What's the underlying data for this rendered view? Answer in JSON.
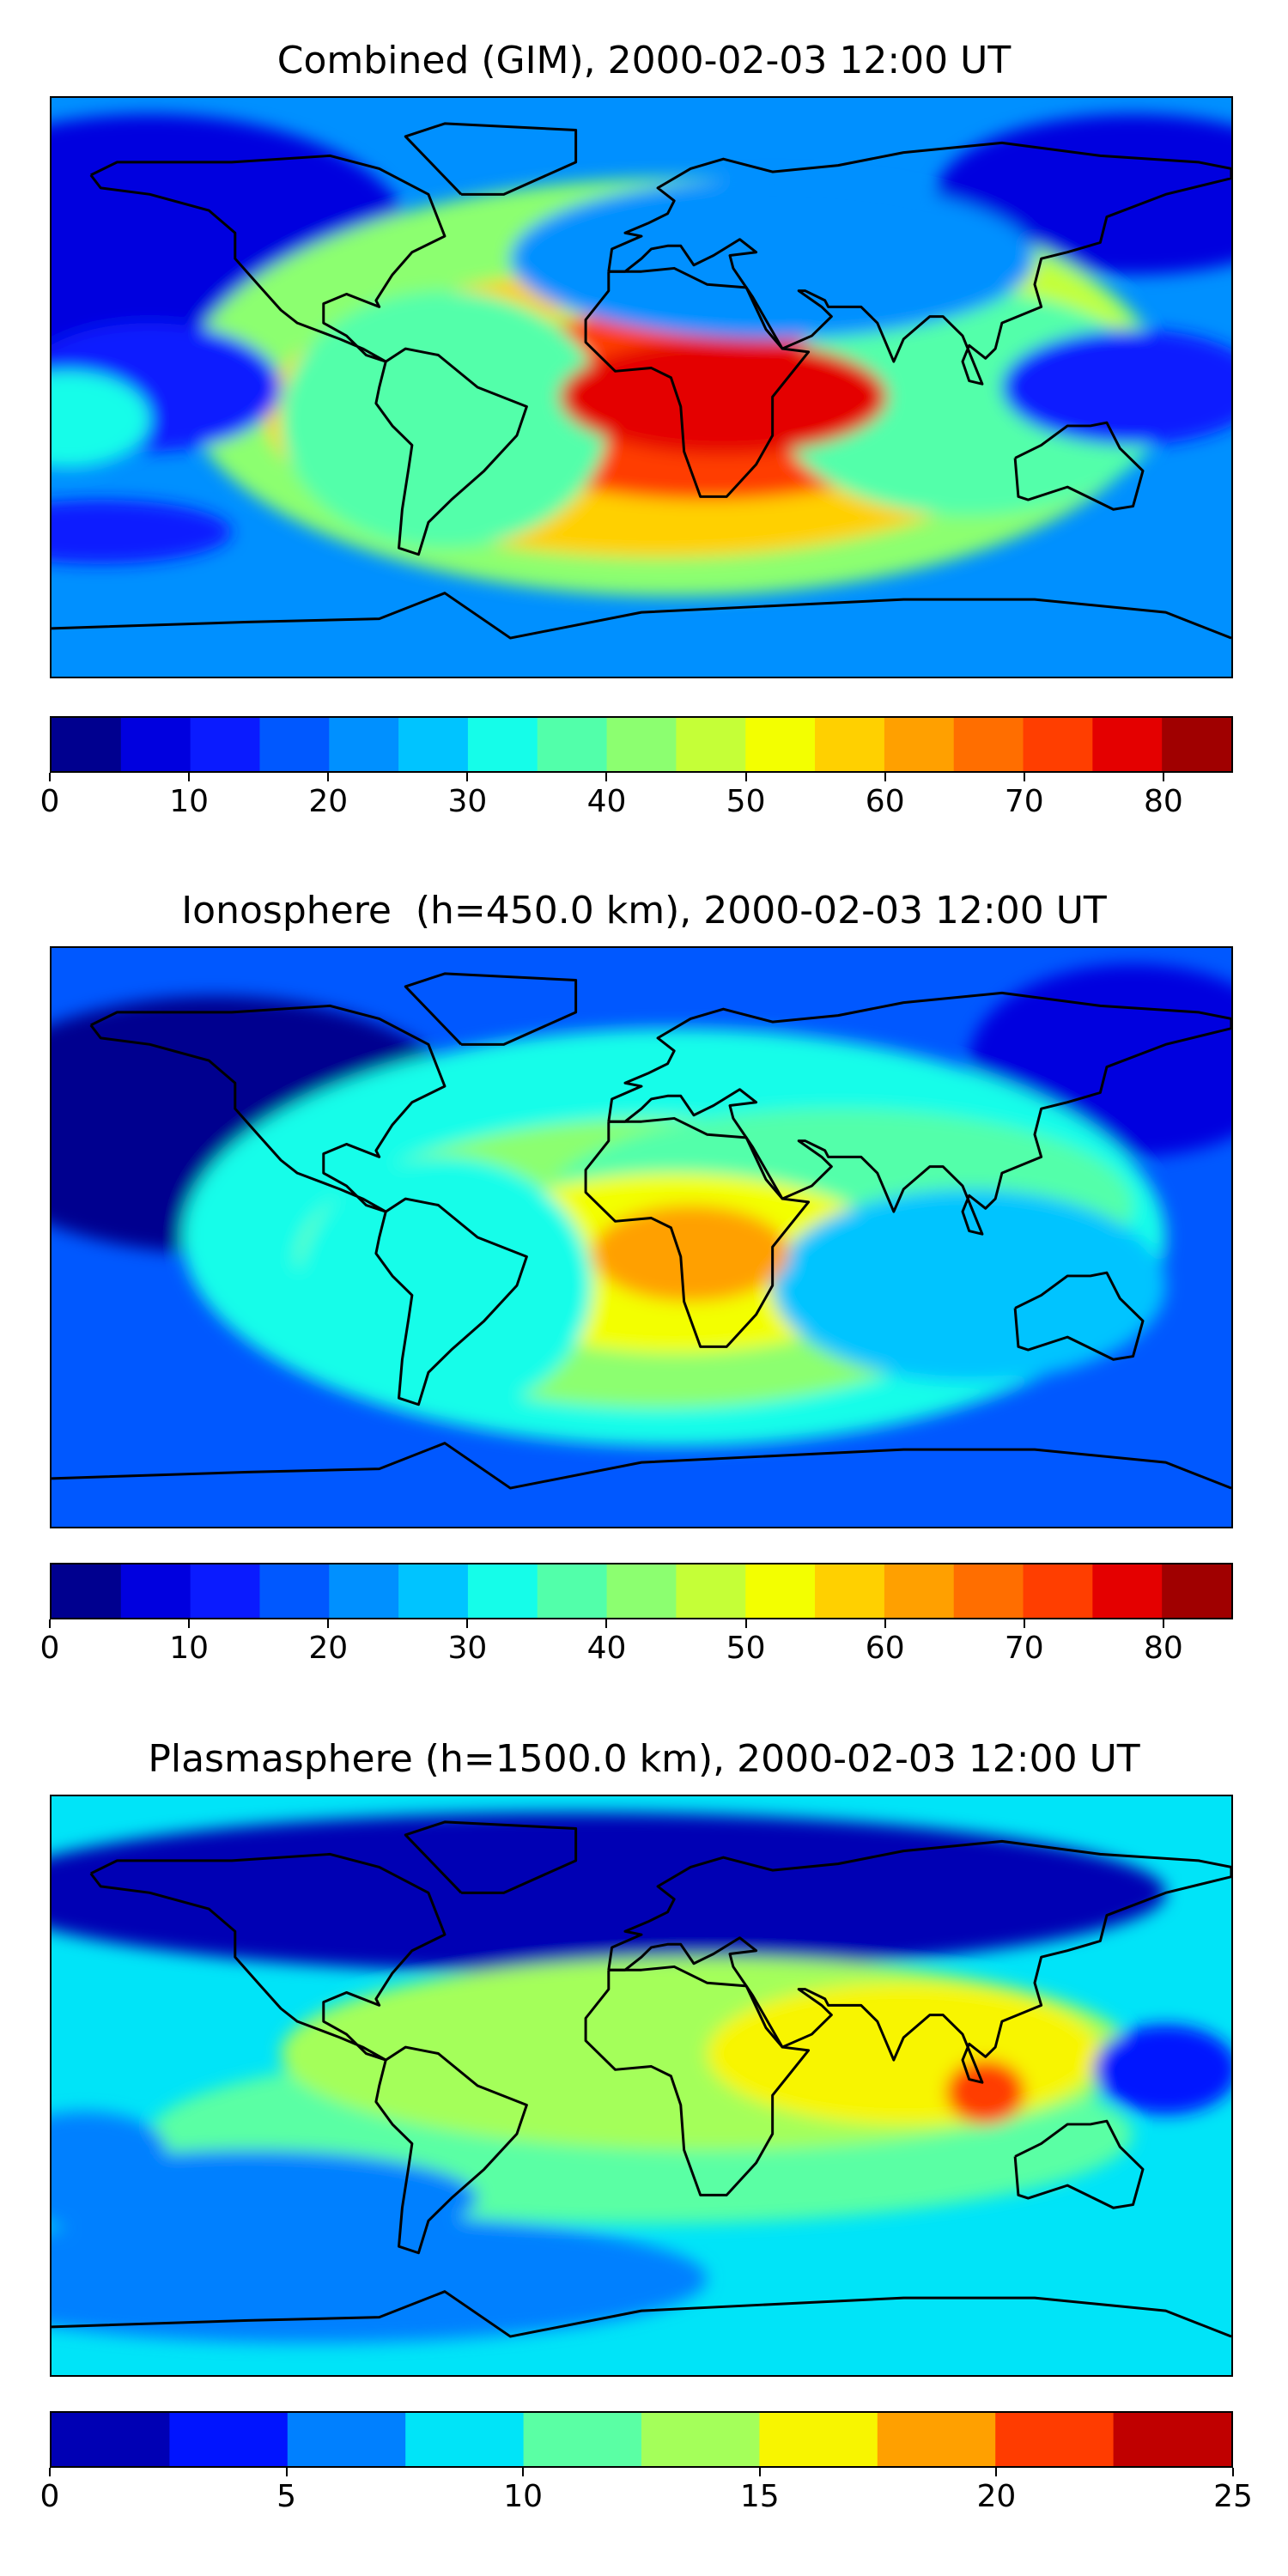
{
  "chart_data": [
    {
      "type": "heatmap",
      "title": "Combined (GIM), 2000-02-03 12:00 UT",
      "colorbar": {
        "min": 0,
        "max": 85,
        "step": 5,
        "ticks": [
          0,
          10,
          20,
          30,
          40,
          50,
          60,
          70,
          80
        ],
        "tick_labels": [
          "0",
          "10",
          "20",
          "30",
          "40",
          "50",
          "60",
          "70",
          "80"
        ],
        "colors": [
          "#00008f",
          "#0000df",
          "#0a1bff",
          "#0058ff",
          "#0090ff",
          "#00c4ff",
          "#15fde9",
          "#52ffaa",
          "#8cff70",
          "#c5ff37",
          "#f3ff00",
          "#ffd000",
          "#ffa000",
          "#ff6e00",
          "#ff3e00",
          "#e40000",
          "#a00000"
        ]
      },
      "blobs": [
        {
          "lon": 20,
          "lat": -5,
          "rx": 80,
          "ry": 30,
          "value": 72
        },
        {
          "lon": 25,
          "lat": -3,
          "rx": 50,
          "ry": 18,
          "value": 78
        },
        {
          "lon": 5,
          "lat": -8,
          "rx": 120,
          "ry": 45,
          "value": 55
        },
        {
          "lon": 10,
          "lat": 0,
          "rx": 150,
          "ry": 65,
          "value": 42
        },
        {
          "lon": 100,
          "lat": -5,
          "rx": 60,
          "ry": 35,
          "value": 35
        },
        {
          "lon": 60,
          "lat": 10,
          "rx": 90,
          "ry": 40,
          "value": 48
        },
        {
          "lon": -60,
          "lat": -10,
          "rx": 50,
          "ry": 40,
          "value": 38
        },
        {
          "lon": -175,
          "lat": -10,
          "rx": 25,
          "ry": 15,
          "value": 30
        },
        {
          "lon": -150,
          "lat": 0,
          "rx": 40,
          "ry": 20,
          "value": 10
        },
        {
          "lon": 150,
          "lat": 0,
          "rx": 40,
          "ry": 18,
          "value": 12
        },
        {
          "lon": -165,
          "lat": -45,
          "rx": 40,
          "ry": 10,
          "value": 10
        },
        {
          "lon": 40,
          "lat": 40,
          "rx": 80,
          "ry": 25,
          "value": 22
        }
      ],
      "background": 20,
      "dark_regions": [
        {
          "lon": -150,
          "lat": 45,
          "rx": 80,
          "ry": 40,
          "value": 5
        },
        {
          "lon": 150,
          "lat": 60,
          "rx": 60,
          "ry": 25,
          "value": 8
        }
      ]
    },
    {
      "type": "heatmap",
      "title": "Ionosphere  (h=450.0 km), 2000-02-03 12:00 UT",
      "colorbar": {
        "min": 0,
        "max": 85,
        "step": 5,
        "ticks": [
          0,
          10,
          20,
          30,
          40,
          50,
          60,
          70,
          80
        ],
        "tick_labels": [
          "0",
          "10",
          "20",
          "30",
          "40",
          "50",
          "60",
          "70",
          "80"
        ],
        "colors": [
          "#00008f",
          "#0000df",
          "#0a1bff",
          "#0058ff",
          "#0090ff",
          "#00c4ff",
          "#15fde9",
          "#52ffaa",
          "#8cff70",
          "#c5ff37",
          "#f3ff00",
          "#ffd000",
          "#ffa000",
          "#ff6e00",
          "#ff3e00",
          "#e40000",
          "#a00000"
        ]
      },
      "blobs": [
        {
          "lon": 15,
          "lat": -5,
          "rx": 30,
          "ry": 15,
          "value": 62
        },
        {
          "lon": 10,
          "lat": -8,
          "rx": 70,
          "ry": 28,
          "value": 52
        },
        {
          "lon": 5,
          "lat": -8,
          "rx": 110,
          "ry": 45,
          "value": 42
        },
        {
          "lon": 10,
          "lat": 0,
          "rx": 150,
          "ry": 65,
          "value": 32
        },
        {
          "lon": 100,
          "lat": -15,
          "rx": 60,
          "ry": 30,
          "value": 28
        },
        {
          "lon": 60,
          "lat": 10,
          "rx": 90,
          "ry": 30,
          "value": 35
        },
        {
          "lon": -60,
          "lat": -15,
          "rx": 45,
          "ry": 40,
          "value": 30
        }
      ],
      "background": 18,
      "dark_regions": [
        {
          "lon": -130,
          "lat": 35,
          "rx": 80,
          "ry": 40,
          "value": 4
        },
        {
          "lon": 150,
          "lat": 55,
          "rx": 50,
          "ry": 30,
          "value": 6
        }
      ]
    },
    {
      "type": "heatmap",
      "title": "Plasmasphere (h=1500.0 km), 2000-02-03 12:00 UT",
      "colorbar": {
        "min": 0,
        "max": 25,
        "step": 2.5,
        "ticks": [
          0,
          5,
          10,
          15,
          20,
          25
        ],
        "tick_labels": [
          "0",
          "5",
          "10",
          "15",
          "20",
          "25"
        ],
        "colors": [
          "#0000b4",
          "#0014ff",
          "#0080ff",
          "#00e4f8",
          "#5affa4",
          "#a4ff5a",
          "#f8f500",
          "#ffa000",
          "#ff3c00",
          "#c00000"
        ]
      },
      "blobs": [
        {
          "lon": 105,
          "lat": -2,
          "rx": 12,
          "ry": 10,
          "value": 21
        },
        {
          "lon": 80,
          "lat": 10,
          "rx": 60,
          "ry": 22,
          "value": 16
        },
        {
          "lon": 20,
          "lat": 10,
          "rx": 130,
          "ry": 30,
          "value": 13
        },
        {
          "lon": 160,
          "lat": 5,
          "rx": 22,
          "ry": 14,
          "value": 3
        },
        {
          "lon": -120,
          "lat": -35,
          "rx": 70,
          "ry": 15,
          "value": 5
        },
        {
          "lon": -170,
          "lat": -20,
          "rx": 25,
          "ry": 12,
          "value": 6
        },
        {
          "lon": 0,
          "lat": -15,
          "rx": 150,
          "ry": 28,
          "value": 11
        }
      ],
      "background": 9,
      "dark_regions": [
        {
          "lon": -20,
          "lat": 60,
          "rx": 180,
          "ry": 25,
          "value": 2
        },
        {
          "lon": -100,
          "lat": -60,
          "rx": 120,
          "ry": 20,
          "value": 6
        }
      ]
    }
  ]
}
